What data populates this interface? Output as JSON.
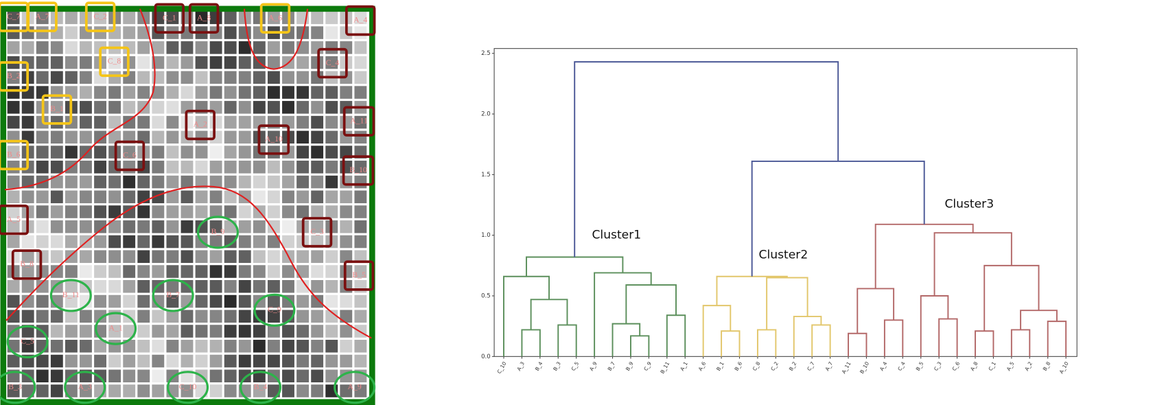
{
  "som": {
    "labels": [
      {
        "text": "C_7",
        "shape": "rect",
        "color": "#f5c518"
      },
      {
        "text": "A_7",
        "shape": "rect",
        "color": "#f5c518"
      },
      {
        "text": "C_2",
        "shape": "rect",
        "color": "#f5c518"
      },
      {
        "text": "A_6",
        "shape": "rect",
        "color": "#f5c518"
      },
      {
        "text": "C_8",
        "shape": "rect",
        "color": "#f5c518"
      },
      {
        "text": "B_2",
        "shape": "rect",
        "color": "#f5c518"
      },
      {
        "text": "B_1",
        "shape": "rect",
        "color": "#f5c518"
      },
      {
        "text": "B_6",
        "shape": "rect",
        "color": "#f5c518"
      },
      {
        "text": "C_1",
        "shape": "rect",
        "color": "#7a1010"
      },
      {
        "text": "A_8",
        "shape": "rect",
        "color": "#7a1010"
      },
      {
        "text": "A_4",
        "shape": "rect",
        "color": "#7a1010"
      },
      {
        "text": "C_4",
        "shape": "rect",
        "color": "#7a1010"
      },
      {
        "text": "A_11",
        "shape": "rect",
        "color": "#7a1010"
      },
      {
        "text": "A_2",
        "shape": "rect",
        "color": "#7a1010"
      },
      {
        "text": "A_10",
        "shape": "rect",
        "color": "#7a1010"
      },
      {
        "text": "C_6",
        "shape": "rect",
        "color": "#7a1010"
      },
      {
        "text": "B_10",
        "shape": "rect",
        "color": "#7a1010"
      },
      {
        "text": "A_5",
        "shape": "rect",
        "color": "#7a1010"
      },
      {
        "text": "C_3",
        "shape": "rect",
        "color": "#7a1010"
      },
      {
        "text": "B_8",
        "shape": "rect",
        "color": "#7a1010"
      },
      {
        "text": "B_5",
        "shape": "rect",
        "color": "#7a1010"
      },
      {
        "text": "B_9",
        "shape": "ellipse",
        "color": "#2db34a"
      },
      {
        "text": "B_11",
        "shape": "ellipse",
        "color": "#2db34a"
      },
      {
        "text": "B_7",
        "shape": "ellipse",
        "color": "#2db34a"
      },
      {
        "text": "C_9",
        "shape": "ellipse",
        "color": "#2db34a"
      },
      {
        "text": "A_1",
        "shape": "ellipse",
        "color": "#2db34a"
      },
      {
        "text": "C_5",
        "shape": "ellipse",
        "color": "#2db34a"
      },
      {
        "text": "B_3",
        "shape": "ellipse",
        "color": "#2db34a"
      },
      {
        "text": "A_3",
        "shape": "ellipse",
        "color": "#2db34a"
      },
      {
        "text": "C_10",
        "shape": "ellipse",
        "color": "#2db34a"
      },
      {
        "text": "B_4",
        "shape": "ellipse",
        "color": "#2db34a"
      },
      {
        "text": "A_9",
        "shape": "ellipse",
        "color": "#2db34a"
      }
    ]
  },
  "chart_data": {
    "type": "dendrogram",
    "leaves": [
      "C_10",
      "A_3",
      "B_4",
      "B_3",
      "C_5",
      "A_9",
      "B_7",
      "B_9",
      "C_9",
      "B_11",
      "A_1",
      "A_6",
      "B_1",
      "B_6",
      "C_8",
      "C_2",
      "B_2",
      "C_7",
      "A_7",
      "A_11",
      "B_10",
      "A_4",
      "C_4",
      "B_5",
      "C_3",
      "C_6",
      "A_8",
      "C_1",
      "A_5",
      "A_2",
      "B_8",
      "A_10"
    ],
    "links": [
      {
        "children": [
          1,
          2
        ],
        "height": 0.22,
        "color": "#5b8f5b"
      },
      {
        "children": [
          3,
          4
        ],
        "height": 0.26,
        "color": "#5b8f5b"
      },
      {
        "children": [
          32,
          33
        ],
        "height": 0.47,
        "color": "#5b8f5b"
      },
      {
        "children": [
          0,
          34
        ],
        "height": 0.66,
        "color": "#5b8f5b"
      },
      {
        "children": [
          7,
          8
        ],
        "height": 0.17,
        "color": "#5b8f5b"
      },
      {
        "children": [
          6,
          36
        ],
        "height": 0.27,
        "color": "#5b8f5b"
      },
      {
        "children": [
          9,
          10
        ],
        "height": 0.34,
        "color": "#5b8f5b"
      },
      {
        "children": [
          37,
          38
        ],
        "height": 0.59,
        "color": "#5b8f5b"
      },
      {
        "children": [
          5,
          39
        ],
        "height": 0.69,
        "color": "#5b8f5b"
      },
      {
        "children": [
          35,
          40
        ],
        "height": 0.82,
        "color": "#5b8f5b"
      },
      {
        "children": [
          12,
          13
        ],
        "height": 0.21,
        "color": "#e2c66a"
      },
      {
        "children": [
          11,
          42
        ],
        "height": 0.42,
        "color": "#e2c66a"
      },
      {
        "children": [
          14,
          15
        ],
        "height": 0.22,
        "color": "#e2c66a"
      },
      {
        "children": [
          17,
          18
        ],
        "height": 0.26,
        "color": "#e2c66a"
      },
      {
        "children": [
          16,
          45
        ],
        "height": 0.33,
        "color": "#e2c66a"
      },
      {
        "children": [
          44,
          46
        ],
        "height": 0.65,
        "color": "#e2c66a"
      },
      {
        "children": [
          43,
          47
        ],
        "height": 0.66,
        "color": "#e2c66a"
      },
      {
        "children": [
          19,
          20
        ],
        "height": 0.19,
        "color": "#b36868"
      },
      {
        "children": [
          21,
          22
        ],
        "height": 0.3,
        "color": "#b36868"
      },
      {
        "children": [
          49,
          50
        ],
        "height": 0.56,
        "color": "#b36868"
      },
      {
        "children": [
          24,
          25
        ],
        "height": 0.31,
        "color": "#b36868"
      },
      {
        "children": [
          23,
          52
        ],
        "height": 0.5,
        "color": "#b36868"
      },
      {
        "children": [
          26,
          27
        ],
        "height": 0.21,
        "color": "#b36868"
      },
      {
        "children": [
          28,
          29
        ],
        "height": 0.22,
        "color": "#b36868"
      },
      {
        "children": [
          30,
          31
        ],
        "height": 0.29,
        "color": "#b36868"
      },
      {
        "children": [
          55,
          56
        ],
        "height": 0.38,
        "color": "#b36868"
      },
      {
        "children": [
          54,
          57
        ],
        "height": 0.75,
        "color": "#b36868"
      },
      {
        "children": [
          53,
          58
        ],
        "height": 1.02,
        "color": "#b36868"
      },
      {
        "children": [
          51,
          59
        ],
        "height": 1.09,
        "color": "#b36868"
      },
      {
        "children": [
          48,
          60
        ],
        "height": 1.61,
        "color": "#4a5796"
      },
      {
        "children": [
          41,
          61
        ],
        "height": 2.43,
        "color": "#4a5796"
      }
    ],
    "ylim": [
      0,
      2.54
    ],
    "yticks": [
      {
        "value": 0,
        "label": "0.0"
      },
      0.5,
      {
        "value": 1,
        "label": "1.0"
      },
      1.5,
      {
        "value": 2,
        "label": "2.0"
      },
      2.5
    ],
    "annotations": [
      "Cluster1",
      "Cluster2",
      "Cluster3"
    ]
  }
}
